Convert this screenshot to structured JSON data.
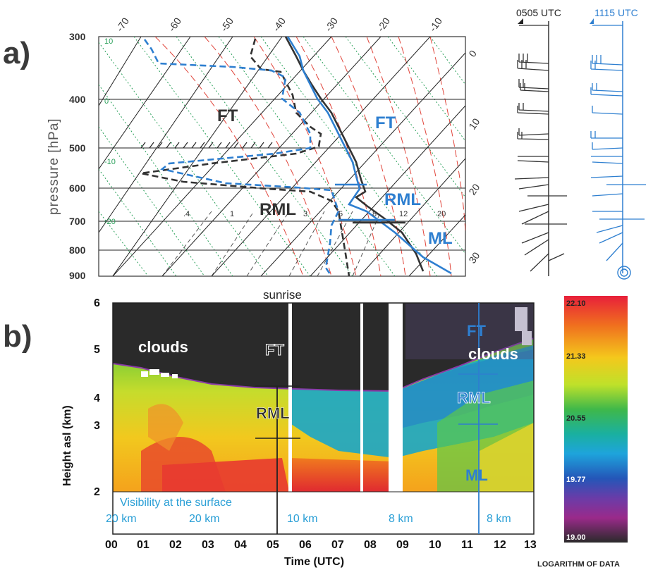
{
  "panel_a": {
    "label": "a)",
    "pressure_title": "pressure [hPa]",
    "pressure_ticks": [
      "300",
      "400",
      "500",
      "600",
      "700",
      "800",
      "900"
    ],
    "temperature_top_labels": [
      "-70",
      "-60",
      "-50",
      "-40",
      "-30",
      "-20",
      "-10"
    ],
    "temperature_right_labels": [
      "0",
      "10",
      "20",
      "30"
    ],
    "adiabat_labels": [
      "10",
      "0",
      "-10",
      "-20"
    ],
    "mixing_labels": [
      ".4",
      "1",
      "3",
      "5",
      "8",
      "12",
      "20"
    ],
    "layer_labels": {
      "ft_left": "FT",
      "ft_right": "FT",
      "rml_left": "RML",
      "rml_right": "RML",
      "ml": "ML"
    },
    "time_0505": "0505 UTC",
    "time_1115": "1115 UTC"
  },
  "panel_b": {
    "label": "b)",
    "sunrise": "sunrise",
    "y_title": "Height asl (km)",
    "x_title": "Time (UTC)",
    "y_ticks": [
      "2",
      "3",
      "4",
      "5",
      "6"
    ],
    "x_ticks": [
      "00",
      "01",
      "02",
      "03",
      "04",
      "05",
      "06",
      "07",
      "08",
      "09",
      "10",
      "11",
      "12",
      "13"
    ],
    "labels": {
      "clouds_left": "clouds",
      "ft_mid": "FT",
      "rml_mid": "RML",
      "ft_right": "FT",
      "clouds_right": "clouds",
      "rml_right": "RML",
      "ml_right": "ML"
    },
    "visibility_title": "Visibility at the surface",
    "visibility": [
      "20 km",
      "20 km",
      "10 km",
      "8 km",
      "8 km"
    ],
    "colorbar_ticks": [
      "22.10",
      "21.33",
      "20.55",
      "19.77",
      "19.00"
    ],
    "colorbar_title": "LOGARITHM OF DATA"
  },
  "colors": {
    "black_profile": "#333333",
    "blue_profile": "#2e7fd0",
    "dry_adiabat": "#222222",
    "moist_adiabat": "#e0443a",
    "mixing_ratio": "#444444",
    "green_adiabat": "#2aa05a",
    "visibility_text": "#2a9fd6"
  }
}
